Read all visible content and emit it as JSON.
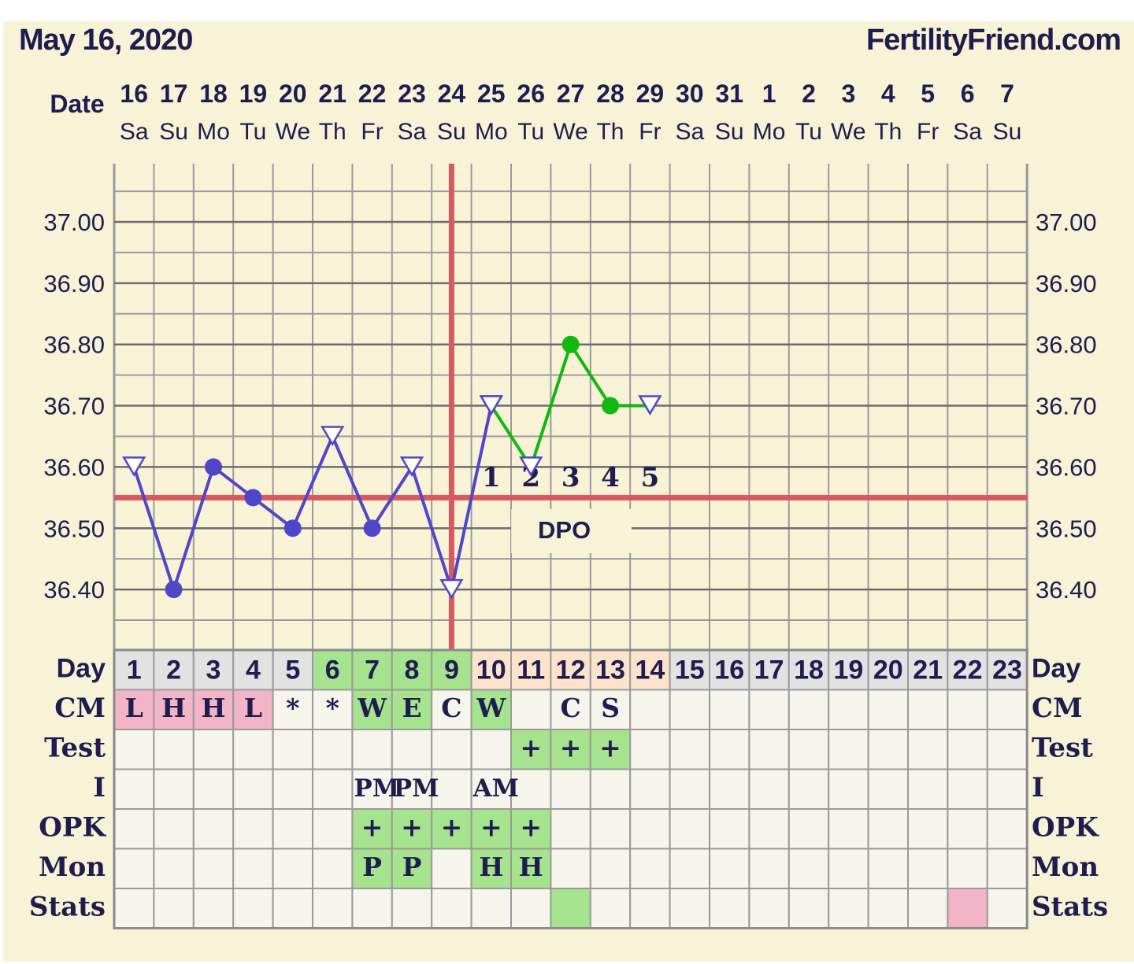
{
  "header": {
    "date_label": "May 16, 2020",
    "site_label": "FertilityFriend.com"
  },
  "colors": {
    "background": "#f8f3d6",
    "pre_ovulation_line": "#5046c8",
    "post_ovulation_line": "#10b810",
    "coverline": "#d85a60",
    "ovulation_line": "#d85a60",
    "grid": "#9a9a9a",
    "text": "#1f1d4f",
    "day_gray": "#e2e2e2",
    "day_green": "#a5e38e",
    "day_peach": "#fde3cc",
    "cm_pink": "#f2b5c8",
    "cell_green": "#a5e38e",
    "stats_pink": "#f2b5c8"
  },
  "chart_data": {
    "type": "line",
    "title": "",
    "row_label_date": "Date",
    "dates": [
      "16",
      "17",
      "18",
      "19",
      "20",
      "21",
      "22",
      "23",
      "24",
      "25",
      "26",
      "27",
      "28",
      "29",
      "30",
      "31",
      "1",
      "2",
      "3",
      "4",
      "5",
      "6",
      "7"
    ],
    "weekdays": [
      "Sa",
      "Su",
      "Mo",
      "Tu",
      "We",
      "Th",
      "Fr",
      "Sa",
      "Su",
      "Mo",
      "Tu",
      "We",
      "Th",
      "Fr",
      "Sa",
      "Su",
      "Mo",
      "Tu",
      "We",
      "Th",
      "Fr",
      "Sa",
      "Su"
    ],
    "ylim": [
      36.31,
      37.09
    ],
    "yticks": [
      36.4,
      36.5,
      36.6,
      36.7,
      36.8,
      36.9,
      37.0
    ],
    "ytick_labels": [
      "36.40",
      "36.50",
      "36.60",
      "36.70",
      "36.80",
      "36.90",
      "37.00"
    ],
    "series": [
      {
        "color": "#5046c8",
        "points": [
          {
            "day": 1,
            "temp": 36.6,
            "marker": "triangle"
          },
          {
            "day": 2,
            "temp": 36.4,
            "marker": "dot"
          },
          {
            "day": 3,
            "temp": 36.6,
            "marker": "dot"
          },
          {
            "day": 4,
            "temp": 36.55,
            "marker": "dot"
          },
          {
            "day": 5,
            "temp": 36.5,
            "marker": "dot"
          },
          {
            "day": 6,
            "temp": 36.65,
            "marker": "triangle"
          },
          {
            "day": 7,
            "temp": 36.5,
            "marker": "dot"
          },
          {
            "day": 8,
            "temp": 36.6,
            "marker": "triangle"
          },
          {
            "day": 9,
            "temp": 36.4,
            "marker": "triangle"
          },
          {
            "day": 10,
            "temp": 36.7,
            "marker": "triangle"
          }
        ]
      },
      {
        "color": "#10b810",
        "points": [
          {
            "day": 10,
            "temp": 36.7,
            "marker": "triangle"
          },
          {
            "day": 11,
            "temp": 36.6,
            "marker": "triangle"
          },
          {
            "day": 12,
            "temp": 36.8,
            "marker": "dot"
          },
          {
            "day": 13,
            "temp": 36.7,
            "marker": "dot"
          },
          {
            "day": 14,
            "temp": 36.7,
            "marker": "triangle"
          }
        ]
      }
    ],
    "coverline": 36.55,
    "ovulation_day": 9,
    "dpo": {
      "label": "DPO",
      "days": [
        10,
        11,
        12,
        13,
        14
      ],
      "numbers": [
        "1",
        "2",
        "3",
        "4",
        "5"
      ]
    },
    "rows": {
      "Day": {
        "label": "Day",
        "values": [
          "1",
          "2",
          "3",
          "4",
          "5",
          "6",
          "7",
          "8",
          "9",
          "10",
          "11",
          "12",
          "13",
          "14",
          "15",
          "16",
          "17",
          "18",
          "19",
          "20",
          "21",
          "22",
          "23"
        ]
      },
      "CM": {
        "label": "CM",
        "values": [
          "L",
          "H",
          "H",
          "L",
          "*",
          "*",
          "W",
          "E",
          "C",
          "W",
          "",
          "C",
          "S",
          "",
          "",
          "",
          "",
          "",
          "",
          "",
          "",
          "",
          ""
        ]
      },
      "Test": {
        "label": "Test",
        "values": [
          "",
          "",
          "",
          "",
          "",
          "",
          "",
          "",
          "",
          "",
          "+",
          "+",
          "+",
          "",
          "",
          "",
          "",
          "",
          "",
          "",
          "",
          "",
          ""
        ]
      },
      "I": {
        "label": "I",
        "values": [
          "",
          "",
          "",
          "",
          "",
          "",
          "PM",
          "PM",
          "",
          "AM",
          "",
          "",
          "",
          "",
          "",
          "",
          "",
          "",
          "",
          "",
          "",
          "",
          ""
        ]
      },
      "OPK": {
        "label": "OPK",
        "values": [
          "",
          "",
          "",
          "",
          "",
          "",
          "+",
          "+",
          "+",
          "+",
          "+",
          "",
          "",
          "",
          "",
          "",
          "",
          "",
          "",
          "",
          "",
          "",
          ""
        ]
      },
      "Mon": {
        "label": "Mon",
        "values": [
          "",
          "",
          "",
          "",
          "",
          "",
          "P",
          "P",
          "",
          "H",
          "H",
          "",
          "",
          "",
          "",
          "",
          "",
          "",
          "",
          "",
          "",
          "",
          ""
        ]
      },
      "Stats": {
        "label": "Stats",
        "values": [
          "",
          "",
          "",
          "",
          "",
          "",
          "",
          "",
          "",
          "",
          "",
          "",
          "",
          "",
          "",
          "",
          "",
          "",
          "",
          "",
          "",
          "",
          ""
        ]
      }
    },
    "row_colors": {
      "Day": [
        "gray",
        "gray",
        "gray",
        "gray",
        "gray",
        "green",
        "green",
        "green",
        "green",
        "peach",
        "peach",
        "peach",
        "peach",
        "peach",
        "gray",
        "gray",
        "gray",
        "gray",
        "gray",
        "gray",
        "gray",
        "gray",
        "gray"
      ],
      "CM": [
        "pink",
        "pink",
        "pink",
        "pink",
        "",
        "",
        "green",
        "green",
        "",
        "green",
        "",
        "",
        "",
        "",
        "",
        "",
        "",
        "",
        "",
        "",
        "",
        "",
        ""
      ],
      "Test": [
        "",
        "",
        "",
        "",
        "",
        "",
        "",
        "",
        "",
        "",
        "green",
        "green",
        "green",
        "",
        "",
        "",
        "",
        "",
        "",
        "",
        "",
        "",
        ""
      ],
      "I": [
        "",
        "",
        "",
        "",
        "",
        "",
        "",
        "",
        "",
        "",
        "",
        "",
        "",
        "",
        "",
        "",
        "",
        "",
        "",
        "",
        "",
        "",
        ""
      ],
      "OPK": [
        "",
        "",
        "",
        "",
        "",
        "",
        "green",
        "green",
        "green",
        "green",
        "green",
        "",
        "",
        "",
        "",
        "",
        "",
        "",
        "",
        "",
        "",
        "",
        ""
      ],
      "Mon": [
        "",
        "",
        "",
        "",
        "",
        "",
        "green",
        "green",
        "",
        "green",
        "green",
        "",
        "",
        "",
        "",
        "",
        "",
        "",
        "",
        "",
        "",
        "",
        ""
      ],
      "Stats": [
        "",
        "",
        "",
        "",
        "",
        "",
        "",
        "",
        "",
        "",
        "",
        "green",
        "",
        "",
        "",
        "",
        "",
        "",
        "",
        "",
        "",
        "pink",
        ""
      ]
    }
  }
}
